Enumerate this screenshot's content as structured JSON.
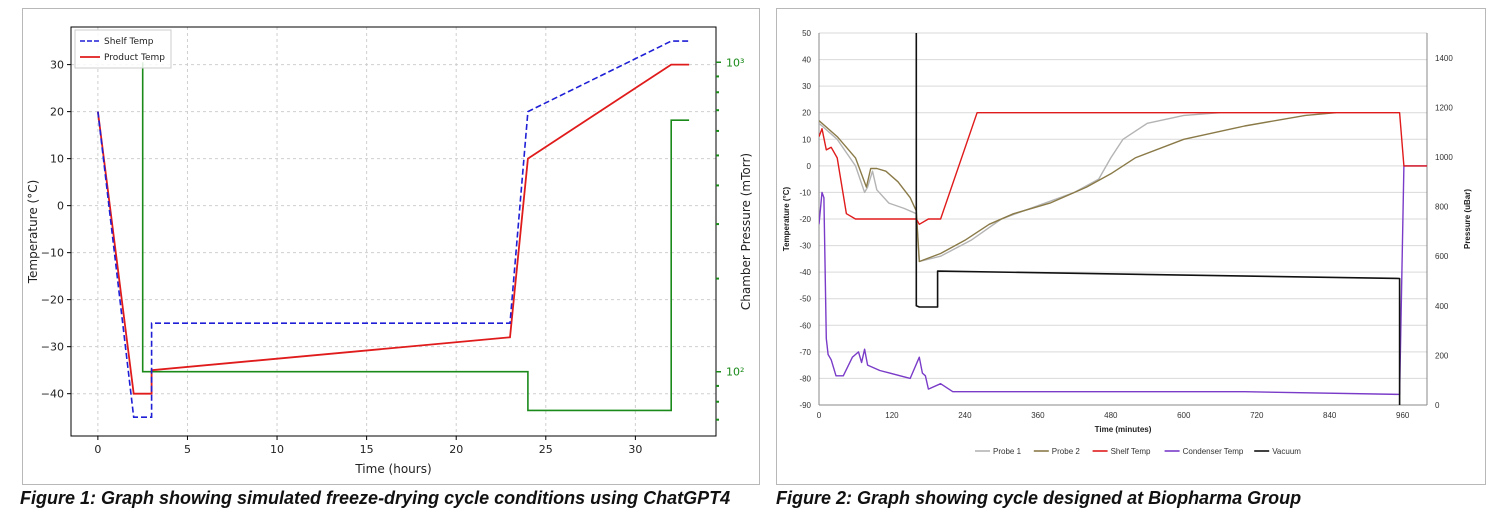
{
  "captions": {
    "fig1": "Figure 1: Graph showing simulated freeze-drying cycle conditions using ChatGPT4",
    "fig2": "Figure 2: Graph showing cycle designed at Biopharma Group"
  },
  "chart_data": [
    {
      "type": "line",
      "title": "",
      "xlabel": "Time (hours)",
      "ylabel": "Temperature (°C)",
      "y2label": "Chamber Pressure (mTorr)",
      "xlim": [
        -1.5,
        34.5
      ],
      "ylim": [
        -49,
        38
      ],
      "y2scale": "log",
      "y2lim": [
        62,
        1300
      ],
      "xticks": [
        0,
        5,
        10,
        15,
        20,
        25,
        30
      ],
      "yticks": [
        -40,
        -30,
        -20,
        -10,
        0,
        10,
        20,
        30
      ],
      "y2ticks": [
        {
          "value": 100,
          "label": "10²"
        },
        {
          "value": 1000,
          "label": "10³"
        }
      ],
      "grid": true,
      "legend_position": "top-left",
      "colors": {
        "shelf": "#1f1fd6",
        "product": "#e01b1b",
        "pressure": "#1a8a1a"
      },
      "series": [
        {
          "name": "Shelf Temp",
          "axis": "left",
          "style": "dashed",
          "x": [
            0,
            2,
            3,
            3,
            23,
            24,
            32,
            33
          ],
          "y": [
            20,
            -45,
            -45,
            -25,
            -25,
            20,
            35,
            35
          ]
        },
        {
          "name": "Product Temp",
          "axis": "left",
          "style": "solid",
          "x": [
            0,
            2,
            3,
            3,
            23,
            24,
            32,
            33
          ],
          "y": [
            20,
            -40,
            -40,
            -35,
            -28,
            10,
            30,
            30
          ]
        },
        {
          "name": "Chamber Pressure",
          "axis": "right",
          "style": "solid",
          "x": [
            2.5,
            2.5,
            2.5,
            24,
            24,
            32,
            32,
            33
          ],
          "y": [
            1000,
            1000,
            100,
            100,
            75,
            75,
            650,
            650
          ]
        }
      ]
    },
    {
      "type": "line",
      "title": "",
      "xlabel": "Time (minutes)",
      "ylabel": "Temperature (°C)",
      "y2label": "Pressure (uBar)",
      "xlim": [
        0,
        1000
      ],
      "ylim": [
        -90,
        50
      ],
      "y2lim": [
        0,
        1500
      ],
      "xticks": [
        0,
        120,
        240,
        360,
        480,
        600,
        720,
        840,
        960
      ],
      "yticks": [
        -90,
        -80,
        -70,
        -60,
        -50,
        -40,
        -30,
        -20,
        -10,
        0,
        10,
        20,
        30,
        40,
        50
      ],
      "y2ticks": [
        0,
        200,
        400,
        600,
        800,
        1000,
        1200,
        1400
      ],
      "grid": true,
      "legend_position": "bottom",
      "series": [
        {
          "name": "Probe 1",
          "axis": "left",
          "color": "#b4b4b4",
          "x": [
            0,
            30,
            60,
            75,
            80,
            88,
            95,
            115,
            140,
            160,
            165,
            200,
            250,
            300,
            360,
            420,
            460,
            480,
            500,
            540,
            600,
            660
          ],
          "y": [
            16,
            10,
            0,
            -10,
            -8,
            -2,
            -9,
            -14,
            -16,
            -18,
            -36,
            -34,
            -28,
            -20,
            -15,
            -10,
            -5,
            3,
            10,
            16,
            19,
            20
          ]
        },
        {
          "name": "Probe 2",
          "axis": "left",
          "color": "#8a7a48",
          "x": [
            0,
            30,
            60,
            78,
            85,
            95,
            110,
            130,
            150,
            160,
            165,
            200,
            240,
            280,
            320,
            380,
            440,
            480,
            520,
            600,
            700,
            800,
            850
          ],
          "y": [
            17,
            11,
            3,
            -8,
            -1,
            -1,
            -2,
            -6,
            -12,
            -17,
            -36,
            -33,
            -28,
            -22,
            -18,
            -14,
            -8,
            -3,
            3,
            10,
            15,
            19,
            20
          ]
        },
        {
          "name": "Shelf Temp",
          "axis": "left",
          "color": "#e01b1b",
          "x": [
            0,
            5,
            12,
            20,
            30,
            45,
            60,
            110,
            160,
            165,
            180,
            200,
            260,
            275,
            900,
            955,
            962,
            1000
          ],
          "y": [
            11,
            14,
            6,
            7,
            3,
            -18,
            -20,
            -20,
            -20,
            -22,
            -20,
            -20,
            20,
            20,
            20,
            20,
            0,
            0
          ]
        },
        {
          "name": "Condenser Temp",
          "axis": "left",
          "color": "#7a3cc8",
          "x": [
            0,
            5,
            8,
            12,
            15,
            20,
            28,
            40,
            55,
            60,
            65,
            70,
            75,
            80,
            100,
            150,
            165,
            170,
            175,
            180,
            200,
            220,
            300,
            500,
            700,
            955,
            962,
            1000
          ],
          "y": [
            -22,
            -10,
            -12,
            -65,
            -71,
            -73,
            -79,
            -79,
            -72,
            -71,
            -70,
            -74,
            -69,
            -75,
            -77,
            -80,
            -72,
            -78,
            -79,
            -84,
            -82,
            -85,
            -85,
            -85,
            -85,
            -86,
            0,
            0
          ]
        },
        {
          "name": "Vacuum",
          "axis": "right",
          "color": "#111111",
          "x": [
            160,
            160,
            165,
            195,
            195,
            955,
            955
          ],
          "y": [
            1500,
            400,
            395,
            395,
            540,
            510,
            0
          ]
        }
      ]
    }
  ]
}
